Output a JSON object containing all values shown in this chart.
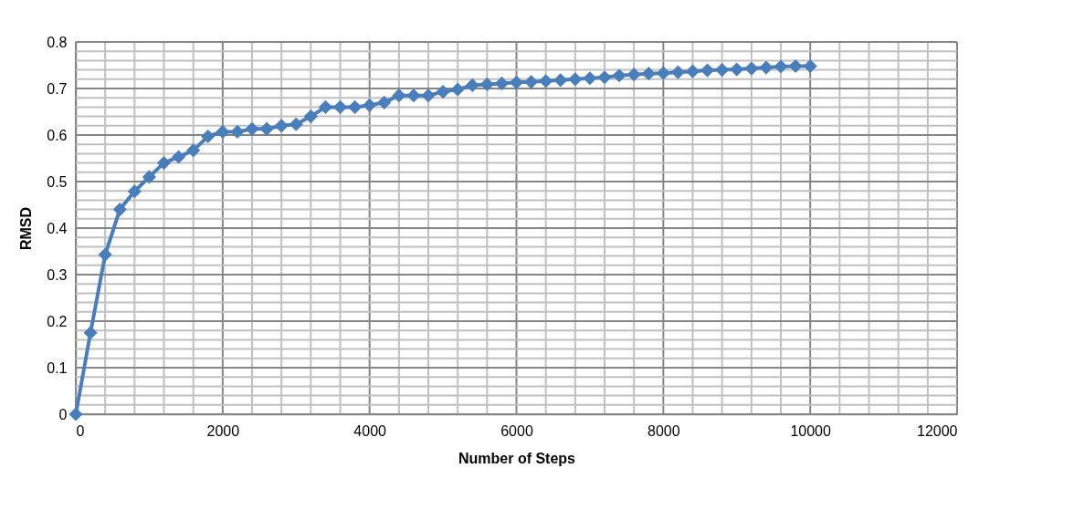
{
  "chart_data": {
    "type": "line",
    "xlabel": "Number of Steps",
    "ylabel": "RMSD",
    "x": [
      0,
      200,
      400,
      600,
      800,
      1000,
      1200,
      1400,
      1600,
      1800,
      2000,
      2200,
      2400,
      2600,
      2800,
      3000,
      3200,
      3400,
      3600,
      3800,
      4000,
      4200,
      4400,
      4600,
      4800,
      5000,
      5200,
      5400,
      5600,
      5800,
      6000,
      6200,
      6400,
      6600,
      6800,
      7000,
      7200,
      7400,
      7600,
      7800,
      8000,
      8200,
      8400,
      8600,
      8800,
      9000,
      9200,
      9400,
      9600,
      9800,
      10000
    ],
    "series": [
      {
        "color": "#4a7ebb",
        "values": [
          0,
          0.175,
          0.343,
          0.44,
          0.479,
          0.51,
          0.54,
          0.553,
          0.567,
          0.597,
          0.607,
          0.607,
          0.613,
          0.613,
          0.62,
          0.623,
          0.64,
          0.66,
          0.66,
          0.66,
          0.664,
          0.67,
          0.685,
          0.685,
          0.685,
          0.693,
          0.698,
          0.707,
          0.709,
          0.711,
          0.713,
          0.714,
          0.716,
          0.718,
          0.72,
          0.722,
          0.724,
          0.728,
          0.73,
          0.732,
          0.733,
          0.735,
          0.737,
          0.739,
          0.74,
          0.741,
          0.743,
          0.745,
          0.747,
          0.748,
          0.748
        ]
      }
    ],
    "xlim": [
      0,
      12000
    ],
    "ylim": [
      0,
      0.8
    ],
    "xticks": [
      0,
      {
        "value": 400,
        "label": null
      },
      {
        "value": 800,
        "label": null
      },
      {
        "value": 1200,
        "label": null
      },
      {
        "value": 1600,
        "label": null
      },
      2000,
      {
        "value": 2400,
        "label": null
      },
      {
        "value": 2800,
        "label": null
      },
      {
        "value": 3200,
        "label": null
      },
      {
        "value": 3600,
        "label": null
      },
      4000,
      {
        "value": 4400,
        "label": null
      },
      {
        "value": 4800,
        "label": null
      },
      {
        "value": 5200,
        "label": null
      },
      {
        "value": 5600,
        "label": null
      },
      6000,
      {
        "value": 6400,
        "label": null
      },
      {
        "value": 6800,
        "label": null
      },
      {
        "value": 7200,
        "label": null
      },
      {
        "value": 7600,
        "label": null
      },
      8000,
      {
        "value": 8400,
        "label": null
      },
      {
        "value": 8800,
        "label": null
      },
      {
        "value": 9200,
        "label": null
      },
      {
        "value": 9600,
        "label": null
      },
      10000,
      {
        "value": 10400,
        "label": null
      },
      {
        "value": 10800,
        "label": null
      },
      {
        "value": 11200,
        "label": null
      },
      {
        "value": 11600,
        "label": null
      },
      12000
    ],
    "yticks": [
      0,
      {
        "value": 0.02,
        "label": null
      },
      {
        "value": 0.04,
        "label": null
      },
      {
        "value": 0.06,
        "label": null
      },
      {
        "value": 0.08,
        "label": null
      },
      0.1,
      {
        "value": 0.12,
        "label": null
      },
      {
        "value": 0.14,
        "label": null
      },
      {
        "value": 0.16,
        "label": null
      },
      {
        "value": 0.18,
        "label": null
      },
      0.2,
      {
        "value": 0.22,
        "label": null
      },
      {
        "value": 0.24,
        "label": null
      },
      {
        "value": 0.26,
        "label": null
      },
      {
        "value": 0.28,
        "label": null
      },
      0.3,
      {
        "value": 0.32,
        "label": null
      },
      {
        "value": 0.34,
        "label": null
      },
      {
        "value": 0.36,
        "label": null
      },
      {
        "value": 0.38,
        "label": null
      },
      0.4,
      {
        "value": 0.42,
        "label": null
      },
      {
        "value": 0.44,
        "label": null
      },
      {
        "value": 0.46,
        "label": null
      },
      {
        "value": 0.48,
        "label": null
      },
      0.5,
      {
        "value": 0.52,
        "label": null
      },
      {
        "value": 0.54,
        "label": null
      },
      {
        "value": 0.56,
        "label": null
      },
      {
        "value": 0.58,
        "label": null
      },
      0.6,
      {
        "value": 0.62,
        "label": null
      },
      {
        "value": 0.64,
        "label": null
      },
      {
        "value": 0.66,
        "label": null
      },
      {
        "value": 0.68,
        "label": null
      },
      0.7,
      {
        "value": 0.72,
        "label": null
      },
      {
        "value": 0.74,
        "label": null
      },
      {
        "value": 0.76,
        "label": null
      },
      {
        "value": 0.78,
        "label": null
      },
      0.8
    ],
    "grid": true,
    "marker": "diamond",
    "line_style": "solid"
  }
}
